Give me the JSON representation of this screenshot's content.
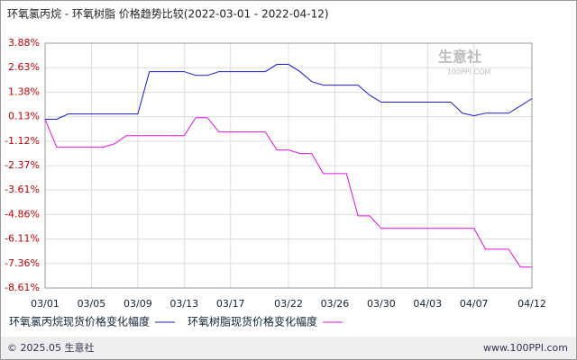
{
  "chart_data": {
    "type": "line",
    "title": "环氧氯丙烷 - 环氧树脂 价格趋势比较(2022-03-01 - 2022-04-12)",
    "categories": [
      "03/01",
      null,
      null,
      null,
      "03/05",
      null,
      null,
      null,
      "03/09",
      null,
      null,
      null,
      "03/13",
      null,
      null,
      null,
      "03/17",
      null,
      null,
      null,
      null,
      "03/22",
      null,
      null,
      null,
      "03/26",
      null,
      null,
      null,
      "03/30",
      null,
      null,
      null,
      "04/03",
      null,
      null,
      null,
      "04/07",
      null,
      null,
      null,
      null,
      "04/12"
    ],
    "series": [
      {
        "name": "环氧氯丙烷现货价格变化幅度",
        "color": "#1a1adb",
        "values": [
          0,
          0,
          0.27,
          0.27,
          0.27,
          0.27,
          0.27,
          0.27,
          0.27,
          2.43,
          2.43,
          2.43,
          2.43,
          2.24,
          2.24,
          2.43,
          2.43,
          2.43,
          2.43,
          2.43,
          2.8,
          2.8,
          2.43,
          1.92,
          1.74,
          1.74,
          1.74,
          1.74,
          1.23,
          0.87,
          0.87,
          0.87,
          0.87,
          0.87,
          0.87,
          0.87,
          0.31,
          0.18,
          0.31,
          0.31,
          0.31,
          0.68,
          1.05
        ]
      },
      {
        "name": "环氧树脂现货价格变化幅度",
        "color": "#e010e0",
        "values": [
          0,
          -1.43,
          -1.43,
          -1.43,
          -1.43,
          -1.43,
          -1.25,
          -0.84,
          -0.84,
          -0.84,
          -0.84,
          -0.84,
          -0.84,
          0.08,
          0.08,
          -0.65,
          -0.65,
          -0.65,
          -0.65,
          -0.65,
          -1.57,
          -1.57,
          -1.75,
          -1.75,
          -2.77,
          -2.77,
          -2.77,
          -4.93,
          -4.93,
          -5.57,
          -5.57,
          -5.57,
          -5.57,
          -5.57,
          -5.57,
          -5.57,
          -5.57,
          -5.57,
          -6.63,
          -6.63,
          -6.63,
          -7.54,
          -7.54
        ]
      }
    ],
    "ylim": [
      -8.61,
      3.88
    ],
    "yticks": [
      {
        "value": 3.88,
        "label": "3.88%"
      },
      {
        "value": 2.63,
        "label": "2.63%"
      },
      {
        "value": 1.38,
        "label": "1.38%"
      },
      {
        "value": 0.13,
        "label": "0.13%"
      },
      {
        "value": -1.12,
        "label": "-1.12%"
      },
      {
        "value": -2.37,
        "label": "-2.37%"
      },
      {
        "value": -3.61,
        "label": "-3.61%"
      },
      {
        "value": -4.86,
        "label": "-4.86%"
      },
      {
        "value": -6.11,
        "label": "-6.11%"
      },
      {
        "value": -7.36,
        "label": "-7.36%"
      },
      {
        "value": -8.61,
        "label": "-8.61%"
      }
    ],
    "grid": true,
    "watermark": "生意社",
    "watermark_url": "100PPI.COM",
    "footer_left": "© 2025.05 生意社",
    "footer_right": "www.100PPI.com"
  }
}
